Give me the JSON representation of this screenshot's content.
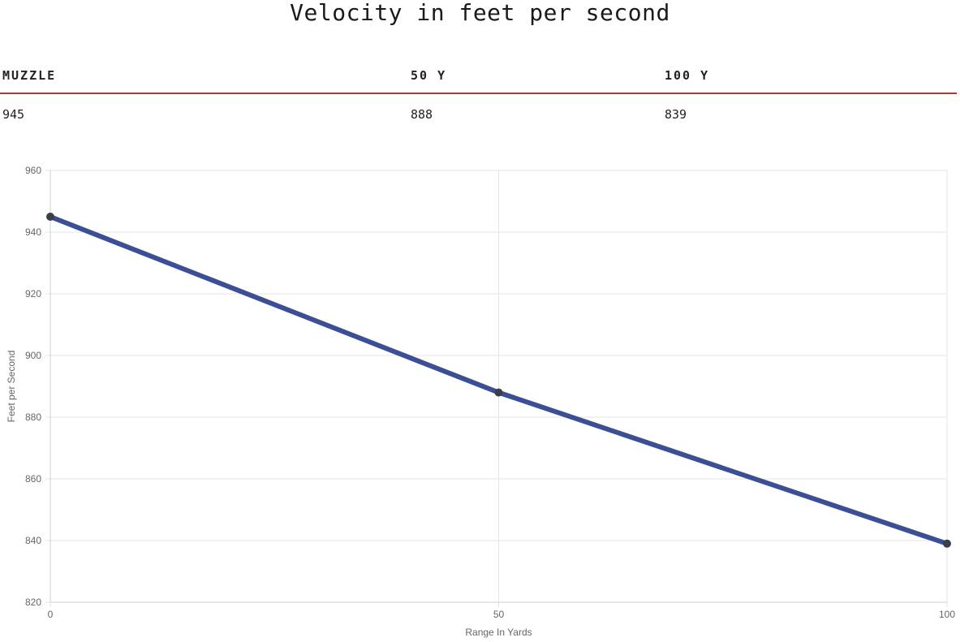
{
  "page": {
    "title": "Velocity in feet per second"
  },
  "table": {
    "headers": [
      "MUZZLE",
      "50 Y",
      "100 Y"
    ],
    "values": [
      "945",
      "888",
      "839"
    ]
  },
  "colors": {
    "line": "#3b4e96",
    "point": "#3a3f4b",
    "rule": "#b53a2e",
    "grid": "#e5e5e5"
  },
  "chart_data": {
    "type": "line",
    "x": [
      0,
      50,
      100
    ],
    "series": [
      {
        "values": [
          945,
          888,
          839
        ]
      }
    ],
    "xlabel": "Range In Yards",
    "ylabel": "Feet per Second",
    "xlim": [
      0,
      100
    ],
    "ylim": [
      820,
      960
    ],
    "xticks": [
      "0",
      "50",
      "100"
    ],
    "yticks": [
      "960",
      "940",
      "920",
      "900",
      "880",
      "860",
      "840",
      "820"
    ],
    "grid": true,
    "legend": "none"
  }
}
